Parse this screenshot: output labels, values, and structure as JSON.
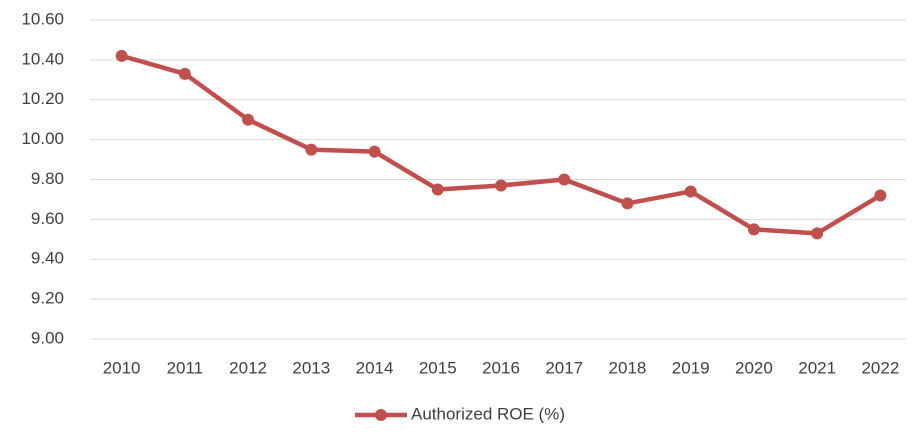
{
  "chart_data": {
    "type": "line",
    "categories": [
      "2010",
      "2011",
      "2012",
      "2013",
      "2014",
      "2015",
      "2016",
      "2017",
      "2018",
      "2019",
      "2020",
      "2021",
      "2022"
    ],
    "series": [
      {
        "name": "Authorized ROE (%)",
        "color": "#c0504d",
        "values": [
          10.42,
          10.33,
          10.1,
          9.95,
          9.94,
          9.75,
          9.77,
          9.8,
          9.68,
          9.74,
          9.55,
          9.53,
          9.72
        ]
      }
    ],
    "ylim": [
      9.0,
      10.6
    ],
    "yticks": [
      {
        "value": 9.0,
        "label": "9.00"
      },
      {
        "value": 9.2,
        "label": "9.20"
      },
      {
        "value": 9.4,
        "label": "9.40"
      },
      {
        "value": 9.6,
        "label": "9.60"
      },
      {
        "value": 9.8,
        "label": "9.80"
      },
      {
        "value": 10.0,
        "label": "10.00"
      },
      {
        "value": 10.2,
        "label": "10.20"
      },
      {
        "value": 10.4,
        "label": "10.40"
      },
      {
        "value": 10.6,
        "label": "10.60"
      }
    ],
    "grid": true,
    "legend": "bottom"
  }
}
